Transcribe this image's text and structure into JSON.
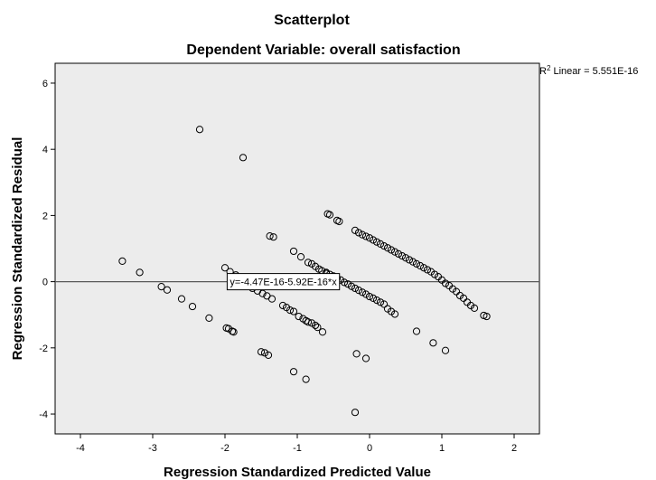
{
  "chart_data": {
    "type": "scatter",
    "title": "Scatterplot",
    "subtitle": "Dependent Variable: overall satisfaction",
    "xlabel": "Regression Standardized Predicted Value",
    "ylabel": "Regression Standardized Residual",
    "xlim": [
      -4.35,
      2.35
    ],
    "ylim": [
      -4.6,
      6.6
    ],
    "x_ticks": [
      -4,
      -3,
      -2,
      -1,
      0,
      1,
      2
    ],
    "y_ticks": [
      -4,
      -2,
      0,
      2,
      4,
      6
    ],
    "r2_label_prefix": "R",
    "r2_label_sup": "2",
    "r2_label_suffix": " Linear = 5.551E-16",
    "fit_line": {
      "intercept": 0,
      "slope": 0,
      "label": "y=-4.47E-16-5.92E-16*x"
    },
    "points": [
      [
        -3.42,
        0.62
      ],
      [
        -3.18,
        0.28
      ],
      [
        -2.88,
        -0.15
      ],
      [
        -2.8,
        -0.25
      ],
      [
        -2.6,
        -0.52
      ],
      [
        -2.45,
        -0.75
      ],
      [
        -2.22,
        -1.1
      ],
      [
        -2.35,
        4.6
      ],
      [
        -1.75,
        3.75
      ],
      [
        -2.0,
        0.42
      ],
      [
        -1.93,
        0.3
      ],
      [
        -1.85,
        0.2
      ],
      [
        -1.78,
        -0.05
      ],
      [
        -1.7,
        -0.12
      ],
      [
        -1.62,
        -0.2
      ],
      [
        -1.55,
        -0.28
      ],
      [
        -1.48,
        -0.36
      ],
      [
        -1.42,
        -0.43
      ],
      [
        -1.35,
        -0.52
      ],
      [
        -1.98,
        -1.4
      ],
      [
        -1.95,
        -1.42
      ],
      [
        -1.9,
        -1.5
      ],
      [
        -1.88,
        -1.52
      ],
      [
        -1.5,
        -2.12
      ],
      [
        -1.45,
        -2.15
      ],
      [
        -1.4,
        -2.22
      ],
      [
        -1.38,
        1.38
      ],
      [
        -1.33,
        1.35
      ],
      [
        -1.05,
        0.92
      ],
      [
        -0.95,
        0.75
      ],
      [
        -0.85,
        0.58
      ],
      [
        -0.8,
        0.54
      ],
      [
        -0.75,
        0.46
      ],
      [
        -0.7,
        0.38
      ],
      [
        -0.66,
        0.33
      ],
      [
        -0.6,
        0.25
      ],
      [
        -1.2,
        -0.72
      ],
      [
        -1.15,
        -0.78
      ],
      [
        -1.1,
        -0.86
      ],
      [
        -1.05,
        -0.9
      ],
      [
        -0.98,
        -1.05
      ],
      [
        -0.92,
        -1.12
      ],
      [
        -0.88,
        -1.18
      ],
      [
        -0.85,
        -1.22
      ],
      [
        -0.8,
        -1.25
      ],
      [
        -0.75,
        -1.32
      ],
      [
        -0.72,
        -1.38
      ],
      [
        -0.65,
        -1.52
      ],
      [
        -1.05,
        -2.72
      ],
      [
        -0.88,
        -2.95
      ],
      [
        -0.58,
        2.05
      ],
      [
        -0.55,
        2.02
      ],
      [
        -0.45,
        1.85
      ],
      [
        -0.42,
        1.82
      ],
      [
        -0.6,
        0.28
      ],
      [
        -0.55,
        0.22
      ],
      [
        -0.5,
        0.17
      ],
      [
        -0.45,
        0.1
      ],
      [
        -0.4,
        0.05
      ],
      [
        -0.35,
        -0.02
      ],
      [
        -0.3,
        -0.07
      ],
      [
        -0.25,
        -0.14
      ],
      [
        -0.2,
        -0.2
      ],
      [
        -0.15,
        -0.26
      ],
      [
        -0.1,
        -0.32
      ],
      [
        -0.05,
        -0.38
      ],
      [
        0.0,
        -0.45
      ],
      [
        0.05,
        -0.5
      ],
      [
        0.1,
        -0.56
      ],
      [
        0.15,
        -0.62
      ],
      [
        0.2,
        -0.68
      ],
      [
        0.25,
        -0.82
      ],
      [
        0.3,
        -0.9
      ],
      [
        0.35,
        -0.98
      ],
      [
        -0.18,
        -2.18
      ],
      [
        -0.05,
        -2.32
      ],
      [
        -0.2,
        -3.95
      ],
      [
        0.65,
        -1.5
      ],
      [
        0.88,
        -1.85
      ],
      [
        1.05,
        -2.08
      ],
      [
        -0.2,
        1.55
      ],
      [
        -0.15,
        1.48
      ],
      [
        -0.1,
        1.42
      ],
      [
        -0.05,
        1.37
      ],
      [
        0.0,
        1.32
      ],
      [
        0.05,
        1.26
      ],
      [
        0.1,
        1.2
      ],
      [
        0.15,
        1.14
      ],
      [
        0.2,
        1.08
      ],
      [
        0.25,
        1.02
      ],
      [
        0.3,
        0.96
      ],
      [
        0.35,
        0.9
      ],
      [
        0.4,
        0.84
      ],
      [
        0.45,
        0.78
      ],
      [
        0.5,
        0.72
      ],
      [
        0.55,
        0.66
      ],
      [
        0.6,
        0.6
      ],
      [
        0.65,
        0.54
      ],
      [
        0.7,
        0.48
      ],
      [
        0.75,
        0.42
      ],
      [
        0.8,
        0.36
      ],
      [
        0.85,
        0.3
      ],
      [
        0.9,
        0.22
      ],
      [
        0.95,
        0.15
      ],
      [
        1.0,
        0.05
      ],
      [
        1.05,
        -0.05
      ],
      [
        1.1,
        -0.12
      ],
      [
        1.15,
        -0.22
      ],
      [
        1.2,
        -0.3
      ],
      [
        1.25,
        -0.42
      ],
      [
        1.3,
        -0.5
      ],
      [
        1.35,
        -0.62
      ],
      [
        1.4,
        -0.72
      ],
      [
        1.45,
        -0.8
      ],
      [
        1.58,
        -1.02
      ],
      [
        1.62,
        -1.05
      ]
    ]
  }
}
